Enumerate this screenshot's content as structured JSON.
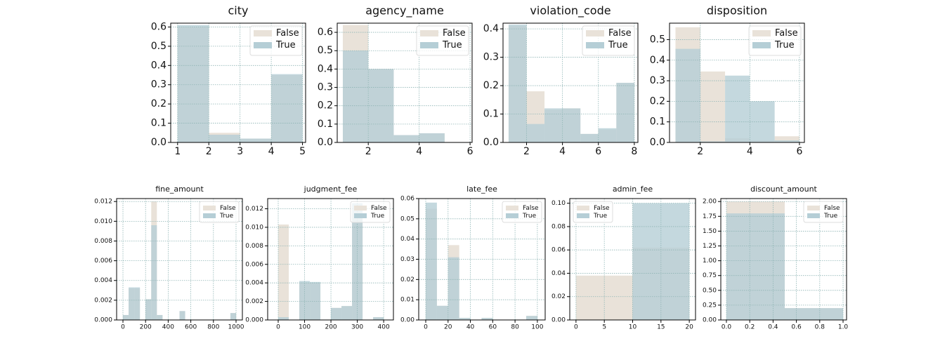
{
  "chart_data": [
    {
      "type": "histogram",
      "title": "city",
      "bins": [
        1,
        2,
        3,
        4,
        5
      ],
      "series": [
        {
          "name": "False",
          "color": "#e9e2d9",
          "values": [
            0.6,
            0.05,
            0.02,
            0.35
          ]
        },
        {
          "name": "True",
          "color": "#b5ced6",
          "values": [
            0.61,
            0.04,
            0.02,
            0.355
          ]
        }
      ],
      "xlim": [
        0.78,
        5.1
      ],
      "xticks": [
        1,
        2,
        3,
        4,
        5
      ],
      "ylim": [
        0,
        0.62
      ],
      "yticks": [
        {
          "value": 0,
          "label": "0.0"
        },
        0.1,
        0.2,
        0.3,
        0.4,
        0.5,
        0.6
      ],
      "grid": true,
      "legend": "upper-right"
    },
    {
      "type": "histogram",
      "title": "agency_name",
      "bins": [
        1,
        2,
        3,
        4,
        5,
        6
      ],
      "series": [
        {
          "name": "False",
          "color": "#e9e2d9",
          "values": [
            0.64,
            0.4,
            0.04,
            0.05,
            0
          ]
        },
        {
          "name": "True",
          "color": "#b5ced6",
          "values": [
            0.5,
            0.4,
            0.04,
            0.05,
            0
          ]
        }
      ],
      "xlim": [
        0.78,
        6.08
      ],
      "xticks": [
        2,
        4,
        6
      ],
      "ylim": [
        0,
        0.65
      ],
      "yticks": [
        {
          "value": 0,
          "label": "0.0"
        },
        0.1,
        0.2,
        0.3,
        0.4,
        0.5,
        0.6
      ],
      "grid": true,
      "legend": "upper-right"
    },
    {
      "type": "histogram",
      "title": "violation_code",
      "bins": [
        1,
        2,
        3,
        4,
        5,
        6,
        7,
        8
      ],
      "series": [
        {
          "name": "False",
          "color": "#e9e2d9",
          "values": [
            0.41,
            0.18,
            0.115,
            0.12,
            0.03,
            0.045,
            0.21
          ]
        },
        {
          "name": "True",
          "color": "#b5ced6",
          "values": [
            0.415,
            0.065,
            0.12,
            0.12,
            0.03,
            0.05,
            0.21
          ]
        }
      ],
      "xlim": [
        0.69,
        8.2
      ],
      "xticks": [
        2,
        4,
        6,
        8
      ],
      "ylim": [
        0,
        0.42
      ],
      "yticks": [
        {
          "value": 0,
          "label": "0.0"
        },
        0.1,
        0.2,
        0.3,
        0.4
      ],
      "grid": true,
      "legend": "upper-right"
    },
    {
      "type": "histogram",
      "title": "disposition",
      "bins": [
        1,
        2,
        3,
        4,
        5,
        6
      ],
      "series": [
        {
          "name": "False",
          "color": "#e9e2d9",
          "values": [
            0.56,
            0.345,
            0.02,
            0.01,
            0.03
          ]
        },
        {
          "name": "True",
          "color": "#b5ced6",
          "values": [
            0.455,
            0.005,
            0.325,
            0.2,
            0.01
          ]
        }
      ],
      "xlim": [
        0.76,
        6.2
      ],
      "xticks": [
        2,
        4,
        6
      ],
      "ylim": [
        0,
        0.58
      ],
      "yticks": [
        {
          "value": 0,
          "label": "0.0"
        },
        0.1,
        0.2,
        0.3,
        0.4,
        0.5
      ],
      "grid": true,
      "legend": "upper-right"
    },
    {
      "type": "histogram",
      "title": "fine_amount",
      "bins": [
        0,
        50,
        100,
        150,
        200,
        250,
        300,
        350,
        400,
        450,
        500,
        550,
        600,
        650,
        700,
        750,
        800,
        850,
        900,
        950,
        1000
      ],
      "series": [
        {
          "name": "False",
          "color": "#e9e2d9",
          "values": [
            0.0005,
            0.0032,
            0.0032,
            0,
            0.0021,
            0.012,
            0.0005,
            0,
            0,
            0,
            0.0009,
            0,
            0,
            0,
            0,
            0,
            0,
            0,
            0,
            0.0007
          ]
        },
        {
          "name": "True",
          "color": "#b5ced6",
          "values": [
            0.0005,
            0.0033,
            0.0033,
            0,
            0.0021,
            0.0096,
            0.0005,
            0,
            0,
            0,
            0.0009,
            0,
            0,
            0,
            0,
            0,
            0,
            0,
            0,
            0.0007
          ]
        }
      ],
      "xlim": [
        -56,
        1056
      ],
      "xticks": [
        0,
        200,
        400,
        600,
        800,
        1000
      ],
      "ylim": [
        0,
        0.0123
      ],
      "yticks": [
        {
          "value": 0,
          "label": "0.000"
        },
        0.002,
        0.004,
        0.006,
        0.008,
        {
          "value": 0.01,
          "label": "0.010"
        },
        0.012
      ],
      "grid": true,
      "legend": "upper-right"
    },
    {
      "type": "histogram",
      "title": "judgment_fee",
      "bins": [
        0,
        40,
        80,
        120,
        160,
        200,
        240,
        280,
        320,
        360,
        400
      ],
      "series": [
        {
          "name": "False",
          "color": "#e9e2d9",
          "values": [
            0.0103,
            0,
            0.004,
            0.004,
            0,
            0.0013,
            0.0015,
            0.0115,
            0,
            0.0003
          ]
        },
        {
          "name": "True",
          "color": "#b5ced6",
          "values": [
            0.0003,
            0,
            0.0042,
            0.0041,
            0,
            0.0013,
            0.0015,
            0.0126,
            0,
            0.0003
          ]
        }
      ],
      "xlim": [
        -40,
        437
      ],
      "xticks": [
        0,
        100,
        200,
        300,
        400
      ],
      "ylim": [
        0,
        0.0131
      ],
      "yticks": [
        {
          "value": 0,
          "label": "0.000"
        },
        0.002,
        0.004,
        0.006,
        0.008,
        {
          "value": 0.01,
          "label": "0.010"
        },
        0.012
      ],
      "grid": true,
      "legend": "upper-right"
    },
    {
      "type": "histogram",
      "title": "late_fee",
      "bins": [
        0,
        10,
        20,
        30,
        40,
        50,
        60,
        70,
        80,
        90,
        100
      ],
      "series": [
        {
          "name": "False",
          "color": "#e9e2d9",
          "values": [
            0.055,
            0.007,
            0.037,
            0.001,
            0,
            0.001,
            0,
            0,
            0,
            0.002
          ]
        },
        {
          "name": "True",
          "color": "#b5ced6",
          "values": [
            0.058,
            0.007,
            0.031,
            0.001,
            0,
            0.001,
            0,
            0,
            0,
            0.002
          ]
        }
      ],
      "xlim": [
        -6.3,
        107
      ],
      "xticks": [
        0,
        20,
        40,
        60,
        80,
        100
      ],
      "ylim": [
        0,
        0.06
      ],
      "yticks": [
        {
          "value": 0,
          "label": "0.00"
        },
        0.01,
        0.02,
        0.03,
        0.04,
        0.05,
        0.06
      ],
      "grid": true,
      "legend": "upper-right"
    },
    {
      "type": "histogram",
      "title": "admin_fee",
      "bins": [
        0,
        10,
        20
      ],
      "series": [
        {
          "name": "False",
          "color": "#e9e2d9",
          "values": [
            0.038,
            0.062
          ]
        },
        {
          "name": "True",
          "color": "#b5ced6",
          "values": [
            0,
            0.1
          ]
        }
      ],
      "xlim": [
        -1.1,
        21.1
      ],
      "xticks": [
        0,
        5,
        10,
        15,
        20
      ],
      "ylim": [
        0,
        0.104
      ],
      "yticks": [
        {
          "value": 0,
          "label": "0.00"
        },
        0.02,
        0.04,
        0.06,
        0.08,
        {
          "value": 0.1,
          "label": "0.10"
        }
      ],
      "grid": true,
      "legend": "upper-left"
    },
    {
      "type": "histogram",
      "title": "discount_amount",
      "bins": [
        0,
        0.5,
        1
      ],
      "series": [
        {
          "name": "False",
          "color": "#e9e2d9",
          "values": [
            2.0,
            0.2
          ]
        },
        {
          "name": "True",
          "color": "#b5ced6",
          "values": [
            1.8,
            0.2
          ]
        }
      ],
      "xlim": [
        -0.048,
        1.03
      ],
      "xticks": [
        {
          "value": 0,
          "label": "0.0"
        },
        0.2,
        0.4,
        0.6,
        0.8,
        {
          "value": 1,
          "label": "1.0"
        }
      ],
      "ylim": [
        0,
        2.05
      ],
      "yticks": [
        {
          "value": 0,
          "label": "0.00"
        },
        0.25,
        {
          "value": 0.5,
          "label": "0.50"
        },
        0.75,
        {
          "value": 1,
          "label": "1.00"
        },
        1.25,
        {
          "value": 1.5,
          "label": "1.50"
        },
        1.75,
        {
          "value": 2,
          "label": "2.00"
        }
      ],
      "grid": true,
      "legend": "upper-right"
    }
  ]
}
